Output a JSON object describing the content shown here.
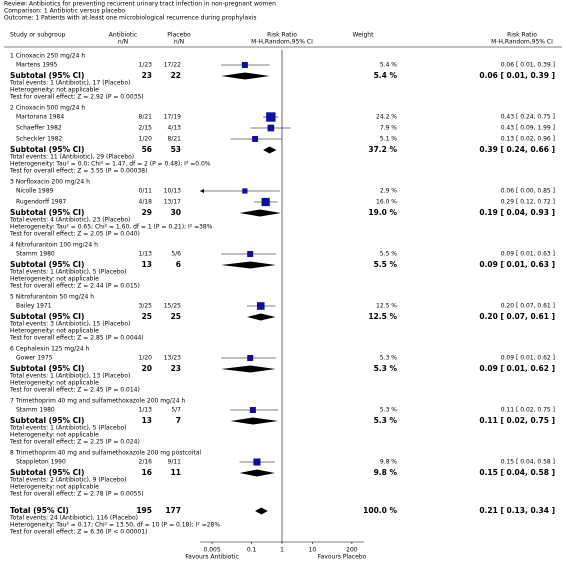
{
  "header": {
    "review": "Review:  Antibiotics for preventing recurrent urinary tract infection in non-pregnant women",
    "comparison": "Comparison:  1 Antibiotic versus placebo",
    "outcome": "Outcome:  1 Patients with at least one microbiological recurrence during prophylaxis"
  },
  "columns": {
    "study": "Study or subgroup",
    "antibiotic": "Antibiotic",
    "antibiotic_unit": "n/N",
    "placebo": "Placebo",
    "placebo_unit": "n/N",
    "plot": "Risk Ratio",
    "plot_method": "M-H,Random,95% CI",
    "weight": "Weight",
    "ratio": "Risk Ratio",
    "ratio_method": "M-H,Random,95% CI"
  },
  "chart_data": {
    "type": "forest",
    "x_scale": "log",
    "xlim": [
      0.002,
      500
    ],
    "xticks": [
      0.005,
      0.1,
      1,
      10,
      200
    ],
    "favours_left": "Favours Antibiotic",
    "favours_right": "Favours Placebo",
    "color": "#1010a0",
    "groups": [
      {
        "title": "1 Cinoxacin 250 mg/24 h",
        "studies": [
          {
            "name": "Martens 1995",
            "antibiotic": "1/23",
            "placebo": "17/22",
            "weight": 5.4,
            "weight_label": "5.4 %",
            "rr": 0.06,
            "ci": [
              0.01,
              0.39
            ],
            "rr_label": "0.06 [ 0.01, 0.39 ]"
          }
        ],
        "subtotal": {
          "label": "Subtotal (95% CI)",
          "antibiotic": 23,
          "placebo": 22,
          "weight": 5.4,
          "weight_label": "5.4 %",
          "rr": 0.06,
          "ci": [
            0.01,
            0.39
          ],
          "rr_label": "0.06 [ 0.01, 0.39 ]"
        },
        "notes": [
          "Total events: 1 (Antibiotic), 17 (Placebo)",
          "Heterogeneity: not applicable",
          "Test for overall effect: Z = 2.92 (P = 0.0035)"
        ]
      },
      {
        "title": "2 Cinoxacin 500 mg/24 h",
        "studies": [
          {
            "name": "Martorana 1984",
            "antibiotic": "8/21",
            "placebo": "17/19",
            "weight": 24.2,
            "weight_label": "24.2 %",
            "rr": 0.43,
            "ci": [
              0.24,
              0.75
            ],
            "rr_label": "0.43 [ 0.24, 0.75 ]"
          },
          {
            "name": "Schaeffer 1982",
            "antibiotic": "2/15",
            "placebo": "4/13",
            "weight": 7.9,
            "weight_label": "7.9 %",
            "rr": 0.43,
            "ci": [
              0.09,
              1.99
            ],
            "rr_label": "0.43 [ 0.09, 1.99 ]"
          },
          {
            "name": "Scheckler 1982",
            "antibiotic": "1/20",
            "placebo": "8/21",
            "weight": 5.1,
            "weight_label": "5.1 %",
            "rr": 0.13,
            "ci": [
              0.02,
              0.96
            ],
            "rr_label": "0.13 [ 0.02, 0.96 ]"
          }
        ],
        "subtotal": {
          "label": "Subtotal (95% CI)",
          "antibiotic": 56,
          "placebo": 53,
          "weight": 37.2,
          "weight_label": "37.2 %",
          "rr": 0.39,
          "ci": [
            0.24,
            0.66
          ],
          "rr_label": "0.39 [ 0.24, 0.66 ]"
        },
        "notes": [
          "Total events: 11 (Antibiotic), 29 (Placebo)",
          "Heterogeneity: Tau² = 0.0; Chi² = 1.47, df = 2 (P = 0.48); I² =0.0%",
          "Test for overall effect: Z = 3.55 (P = 0.00038)"
        ]
      },
      {
        "title": "3 Norfloxacin 200 mg/24 h",
        "studies": [
          {
            "name": "Nicolle 1989",
            "antibiotic": "0/11",
            "placebo": "10/13",
            "weight": 2.9,
            "weight_label": "2.9 %",
            "rr": 0.06,
            "ci": [
              0.0,
              0.85
            ],
            "rr_label": "0.06 [ 0.00, 0.85 ]"
          },
          {
            "name": "Rugendorff 1987",
            "antibiotic": "4/18",
            "placebo": "13/17",
            "weight": 16.0,
            "weight_label": "16.0 %",
            "rr": 0.29,
            "ci": [
              0.12,
              0.72
            ],
            "rr_label": "0.29 [ 0.12, 0.72 ]"
          }
        ],
        "subtotal": {
          "label": "Subtotal (95% CI)",
          "antibiotic": 29,
          "placebo": 30,
          "weight": 19.0,
          "weight_label": "19.0 %",
          "rr": 0.19,
          "ci": [
            0.04,
            0.93
          ],
          "rr_label": "0.19 [ 0.04, 0.93 ]"
        },
        "notes": [
          "Total events: 4 (Antibiotic), 23 (Placebo)",
          "Heterogeneity: Tau² = 0.65; Chi² = 1.60, df = 1 (P = 0.21); I² =38%",
          "Test for overall effect: Z = 2.05 (P = 0.040)"
        ]
      },
      {
        "title": "4 Nitrofurantoin 100 mg/24 h",
        "studies": [
          {
            "name": "Stamm 1980",
            "antibiotic": "1/13",
            "placebo": "5/6",
            "weight": 5.5,
            "weight_label": "5.5 %",
            "rr": 0.09,
            "ci": [
              0.01,
              0.63
            ],
            "rr_label": "0.09 [ 0.01, 0.63 ]"
          }
        ],
        "subtotal": {
          "label": "Subtotal (95% CI)",
          "antibiotic": 13,
          "placebo": 6,
          "weight": 5.5,
          "weight_label": "5.5 %",
          "rr": 0.09,
          "ci": [
            0.01,
            0.63
          ],
          "rr_label": "0.09 [ 0.01, 0.63 ]"
        },
        "notes": [
          "Total events: 1 (Antibiotic), 5 (Placebo)",
          "Heterogeneity: not applicable",
          "Test for overall effect: Z = 2.44 (P = 0.015)"
        ]
      },
      {
        "title": "5 Nitrofurantoin 50 mg/24 h",
        "studies": [
          {
            "name": "Bailey 1971",
            "antibiotic": "3/25",
            "placebo": "15/25",
            "weight": 12.5,
            "weight_label": "12.5 %",
            "rr": 0.2,
            "ci": [
              0.07,
              0.61
            ],
            "rr_label": "0.20 [ 0.07, 0.61 ]"
          }
        ],
        "subtotal": {
          "label": "Subtotal (95% CI)",
          "antibiotic": 25,
          "placebo": 25,
          "weight": 12.5,
          "weight_label": "12.5 %",
          "rr": 0.2,
          "ci": [
            0.07,
            0.61
          ],
          "rr_label": "0.20 [ 0.07, 0.61 ]"
        },
        "notes": [
          "Total events: 3 (Antibiotic), 15 (Placebo)",
          "Heterogeneity: not applicable",
          "Test for overall effect: Z = 2.85 (P = 0.0044)"
        ]
      },
      {
        "title": "6 Cephalexin 125 mg/24 h",
        "studies": [
          {
            "name": "Gower 1975",
            "antibiotic": "1/20",
            "placebo": "13/23",
            "weight": 5.3,
            "weight_label": "5.3 %",
            "rr": 0.09,
            "ci": [
              0.01,
              0.62
            ],
            "rr_label": "0.09 [ 0.01, 0.62 ]"
          }
        ],
        "subtotal": {
          "label": "Subtotal (95% CI)",
          "antibiotic": 20,
          "placebo": 23,
          "weight": 5.3,
          "weight_label": "5.3 %",
          "rr": 0.09,
          "ci": [
            0.01,
            0.62
          ],
          "rr_label": "0.09 [ 0.01, 0.62 ]"
        },
        "notes": [
          "Total events: 1 (Antibiotic), 13 (Placebo)",
          "Heterogeneity: not applicable",
          "Test for overall effect: Z = 2.45 (P = 0.014)"
        ]
      },
      {
        "title": "7 Trimethoprim 40 mg and sulfamethoxazole 200 mg/24 h",
        "studies": [
          {
            "name": "Stamm 1980",
            "antibiotic": "1/13",
            "placebo": "5/7",
            "weight": 5.3,
            "weight_label": "5.3 %",
            "rr": 0.11,
            "ci": [
              0.02,
              0.75
            ],
            "rr_label": "0.11 [ 0.02, 0.75 ]"
          }
        ],
        "subtotal": {
          "label": "Subtotal (95% CI)",
          "antibiotic": 13,
          "placebo": 7,
          "weight": 5.3,
          "weight_label": "5.3 %",
          "rr": 0.11,
          "ci": [
            0.02,
            0.75
          ],
          "rr_label": "0.11 [ 0.02, 0.75 ]"
        },
        "notes": [
          "Total events: 1 (Antibiotic), 5 (Placebo)",
          "Heterogeneity: not applicable",
          "Test for overall effect: Z = 2.25 (P = 0.024)"
        ]
      },
      {
        "title": "8 Trimethoprim 40 mg and sulfamethoxazole 200 mg postcoital",
        "studies": [
          {
            "name": "Stappleton 1990",
            "antibiotic": "2/16",
            "placebo": "9/11",
            "weight": 9.8,
            "weight_label": "9.8 %",
            "rr": 0.15,
            "ci": [
              0.04,
              0.58
            ],
            "rr_label": "0.15 [ 0.04, 0.58 ]"
          }
        ],
        "subtotal": {
          "label": "Subtotal (95% CI)",
          "antibiotic": 16,
          "placebo": 11,
          "weight": 9.8,
          "weight_label": "9.8 %",
          "rr": 0.15,
          "ci": [
            0.04,
            0.58
          ],
          "rr_label": "0.15 [ 0.04, 0.58 ]"
        },
        "notes": [
          "Total events: 2 (Antibiotic), 9 (Placebo)",
          "Heterogeneity: not applicable",
          "Test for overall effect: Z = 2.78 (P = 0.0055)"
        ]
      }
    ],
    "total": {
      "label": "Total (95% CI)",
      "antibiotic": 195,
      "placebo": 177,
      "weight": 100.0,
      "weight_label": "100.0 %",
      "rr": 0.21,
      "ci": [
        0.13,
        0.34
      ],
      "rr_label": "0.21 [ 0.13, 0.34 ]",
      "notes": [
        "Total events: 24 (Antibiotic), 116 (Placebo)",
        "Heterogeneity: Tau² = 0.17; Chi² = 13.50, df = 10 (P = 0.18); I² =28%",
        "Test for overall effect: Z = 6.36 (P < 0.00001)"
      ]
    }
  }
}
